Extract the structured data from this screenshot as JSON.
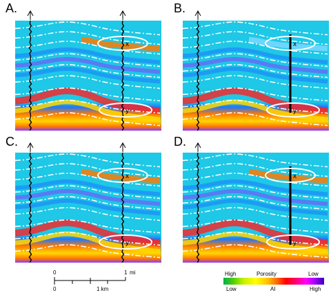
{
  "panels": [
    {
      "label": "A.",
      "x_label": "x",
      "y_label": "y"
    },
    {
      "label": "B.",
      "x_label": "x",
      "y_label": "y"
    },
    {
      "label": "C.",
      "x_label": "x",
      "y_label": "y"
    },
    {
      "label": "D.",
      "x_label": "x",
      "y_label": "y"
    }
  ],
  "scale": {
    "mi_start": "0",
    "mi_end": "1",
    "mi_unit": "mi",
    "km_start": "0",
    "km_mid": "1 km"
  },
  "legend": {
    "top_left": "High",
    "top_mid": "Porosity",
    "top_right": "Low",
    "bottom_left": "Low",
    "bottom_mid": "AI",
    "bottom_right": "High"
  },
  "colors": {
    "background_cyan": "#1ec8e6",
    "mid_blue": "#1e78ff",
    "purple": "#8a3cff",
    "hot_yellow": "#ffd700",
    "hot_orange": "#ff7a00",
    "hot_red": "#ff2020",
    "ellipse": "#ffffff"
  }
}
